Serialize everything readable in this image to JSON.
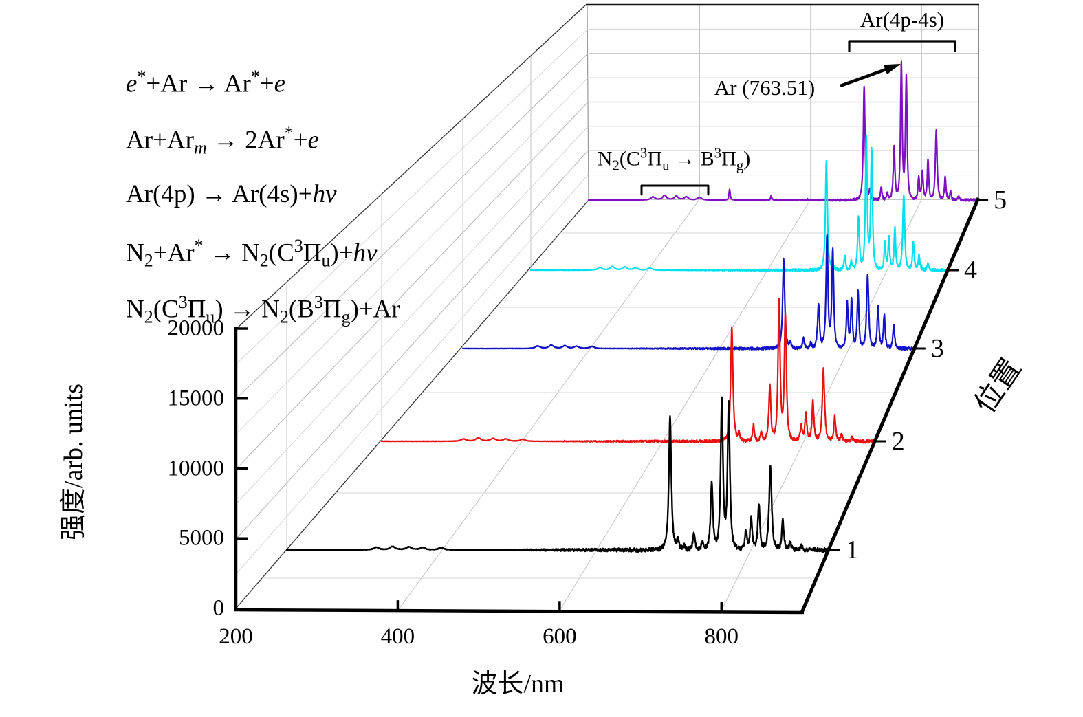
{
  "figure": {
    "background": "#ffffff",
    "equations": [
      "~e~^{*}+Ar → Ar^{*}+~e~",
      "Ar+Ar_{~m~} → 2Ar^{*}+~e~",
      "Ar(4p) → Ar(4s)+~hv~",
      "N_{2}+Ar^{*} → N_{2}(C^{3}Π_{u})+~hv~",
      "N_{2}(C^{3}Π_{u}) → N_{2}(B^{3}Π_{g})+Ar"
    ],
    "annotations": {
      "ar_band_label": "Ar(4p-4s)",
      "ar_line_label": "Ar (763.51)",
      "n2_band_label": "N_{2}(C^{3}Π_{u} → B^{3}Π_{g})"
    }
  },
  "chart_data": {
    "type": "line",
    "variant": "3d-waterfall-emission-spectra",
    "title": "",
    "xlabel": "波长/nm",
    "ylabel": "位置",
    "zlabel": "强度/arb. units",
    "x_range_nm": [
      200,
      900
    ],
    "x_ticks": [
      200,
      400,
      600,
      800
    ],
    "depth_ticks": [
      1,
      2,
      3,
      4,
      5
    ],
    "z_range": [
      0,
      20000
    ],
    "z_ticks": [
      0,
      5000,
      10000,
      15000,
      20000
    ],
    "grid": true,
    "legend_position": "none",
    "annotated_peak_nm": 763.51,
    "series": [
      {
        "name": "1",
        "color": "#000000",
        "peaks_nm_intensity_width": [
          [
            316,
            200,
            5
          ],
          [
            337,
            260,
            5
          ],
          [
            358,
            220,
            5
          ],
          [
            376,
            180,
            5
          ],
          [
            400,
            160,
            5
          ],
          [
            696.5,
            9900,
            2.2
          ],
          [
            706.7,
            700
          ],
          [
            714.7,
            300
          ],
          [
            727.3,
            1300
          ],
          [
            738.4,
            650
          ],
          [
            750.4,
            4900,
            2
          ],
          [
            763.5,
            11350,
            2
          ],
          [
            772.4,
            10950,
            2
          ],
          [
            794.8,
            1400
          ],
          [
            801.5,
            2400
          ],
          [
            811.5,
            3450
          ],
          [
            826.4,
            6350,
            2.2
          ],
          [
            842.5,
            2150
          ],
          [
            852.1,
            600
          ],
          [
            866.8,
            300
          ]
        ]
      },
      {
        "name": "2",
        "color": "#e81010",
        "peaks_nm_intensity_width": [
          [
            316,
            200,
            5
          ],
          [
            337,
            280,
            5
          ],
          [
            358,
            240,
            5
          ],
          [
            376,
            190,
            5
          ],
          [
            400,
            170,
            5
          ],
          [
            696.5,
            9250,
            2.2
          ],
          [
            706.7,
            600
          ],
          [
            727.3,
            1300
          ],
          [
            738.4,
            700
          ],
          [
            750.4,
            4450,
            2
          ],
          [
            763.5,
            11550,
            2
          ],
          [
            772.4,
            10400,
            2
          ],
          [
            794.8,
            1350
          ],
          [
            801.5,
            2350
          ],
          [
            811.5,
            3270
          ],
          [
            826.4,
            5930,
            2.2
          ],
          [
            842.5,
            2030
          ],
          [
            852.1,
            550
          ],
          [
            866.8,
            300
          ]
        ]
      },
      {
        "name": "3",
        "color": "#1212c8",
        "peaks_nm_intensity_width": [
          [
            316,
            220,
            5
          ],
          [
            337,
            300,
            5
          ],
          [
            358,
            250,
            5
          ],
          [
            376,
            200,
            5
          ],
          [
            400,
            180,
            5
          ],
          [
            696.5,
            8000,
            2.2
          ],
          [
            706.7,
            500
          ],
          [
            727.3,
            1000
          ],
          [
            738.4,
            500
          ],
          [
            750.4,
            4000,
            2
          ],
          [
            763.5,
            10000,
            2
          ],
          [
            772.4,
            8750,
            2
          ],
          [
            794.8,
            4000
          ],
          [
            801.5,
            4400
          ],
          [
            811.5,
            5200
          ],
          [
            826.4,
            6600,
            2.2
          ],
          [
            842.5,
            3900
          ],
          [
            852.1,
            3000
          ],
          [
            866.8,
            2100
          ]
        ]
      },
      {
        "name": "4",
        "color": "#00e0ee",
        "peaks_nm_intensity_width": [
          [
            316,
            260,
            5
          ],
          [
            337,
            350,
            5
          ],
          [
            358,
            300,
            5
          ],
          [
            376,
            240,
            5
          ],
          [
            400,
            210,
            5
          ],
          [
            696.5,
            10700,
            2.2
          ],
          [
            706.7,
            700
          ],
          [
            727.3,
            1400
          ],
          [
            738.4,
            900
          ],
          [
            750.4,
            5200,
            2
          ],
          [
            763.5,
            12900,
            2
          ],
          [
            772.4,
            11700,
            2
          ],
          [
            794.8,
            2600
          ],
          [
            801.5,
            3100
          ],
          [
            811.5,
            4000
          ],
          [
            826.4,
            7200,
            2.2
          ],
          [
            842.5,
            2800
          ],
          [
            852.1,
            1500
          ],
          [
            866.8,
            700
          ]
        ]
      },
      {
        "name": "5",
        "color": "#7d10c0",
        "peaks_nm_intensity_width": [
          [
            316,
            330,
            5
          ],
          [
            337,
            480,
            5
          ],
          [
            358,
            400,
            5
          ],
          [
            376,
            330,
            5
          ],
          [
            400,
            280,
            5
          ],
          [
            454,
            1100,
            1.5
          ],
          [
            529,
            430,
            1.5
          ],
          [
            696.5,
            11850,
            2.2
          ],
          [
            706.7,
            900
          ],
          [
            727.3,
            1300
          ],
          [
            738.4,
            700
          ],
          [
            750.4,
            5600,
            2
          ],
          [
            763.5,
            14100,
            2
          ],
          [
            772.4,
            12800,
            2
          ],
          [
            794.8,
            2400
          ],
          [
            801.5,
            2950
          ],
          [
            811.5,
            4200
          ],
          [
            826.4,
            7200,
            2.2
          ],
          [
            842.5,
            2400
          ],
          [
            852.1,
            900
          ],
          [
            866.8,
            400
          ]
        ]
      }
    ]
  }
}
